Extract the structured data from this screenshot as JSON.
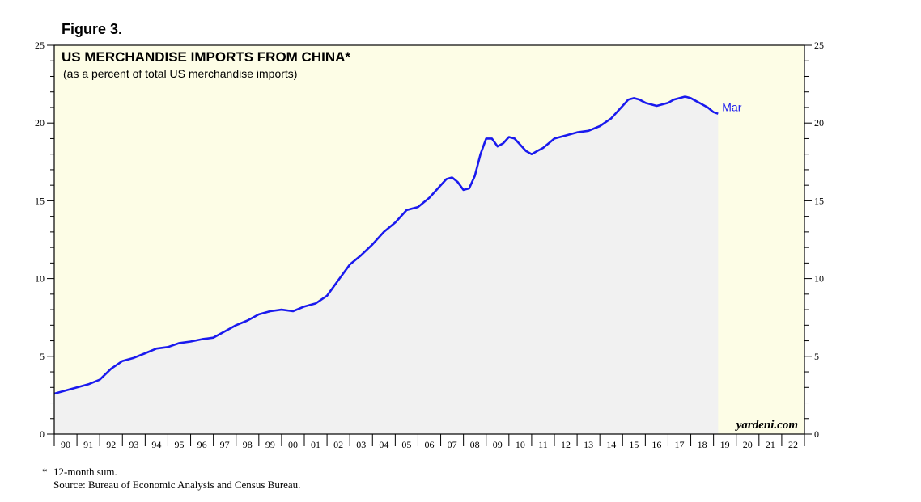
{
  "figure_label": "Figure 3.",
  "footnote": {
    "star": "*",
    "note": "12-month sum.",
    "source": "Source: Bureau of Economic Analysis and Census Bureau."
  },
  "colors": {
    "plot_bg": "#fdfde6",
    "line": "#1a1aee",
    "fill": "#f1f1f1"
  },
  "chart_data": {
    "type": "area",
    "title": "US MERCHANDISE IMPORTS FROM CHINA*",
    "subtitle": "(as a percent of total US merchandise imports)",
    "watermark": "yardeni.com",
    "end_label": "Mar",
    "ylim": [
      0,
      25
    ],
    "y_ticks": [
      "0",
      "5",
      "10",
      "15",
      "20",
      "25"
    ],
    "xlim": [
      1990,
      2023
    ],
    "x_tick_labels": [
      "90",
      "91",
      "92",
      "93",
      "94",
      "95",
      "96",
      "97",
      "98",
      "99",
      "00",
      "01",
      "02",
      "03",
      "04",
      "05",
      "06",
      "07",
      "08",
      "09",
      "10",
      "11",
      "12",
      "13",
      "14",
      "15",
      "16",
      "17",
      "18",
      "19",
      "20",
      "21",
      "22"
    ],
    "grid": false,
    "series": [
      {
        "name": "US merchandise imports from China (% of total)",
        "x": [
          1990.0,
          1990.5,
          1991.0,
          1991.5,
          1992.0,
          1992.5,
          1993.0,
          1993.5,
          1994.0,
          1994.5,
          1995.0,
          1995.5,
          1996.0,
          1996.5,
          1997.0,
          1997.5,
          1998.0,
          1998.5,
          1999.0,
          1999.5,
          2000.0,
          2000.5,
          2001.0,
          2001.5,
          2002.0,
          2002.5,
          2003.0,
          2003.5,
          2004.0,
          2004.5,
          2005.0,
          2005.5,
          2006.0,
          2006.5,
          2007.0,
          2007.25,
          2007.5,
          2007.75,
          2008.0,
          2008.25,
          2008.5,
          2008.75,
          2009.0,
          2009.25,
          2009.5,
          2009.75,
          2010.0,
          2010.25,
          2010.5,
          2010.75,
          2011.0,
          2011.25,
          2011.5,
          2011.75,
          2012.0,
          2012.5,
          2013.0,
          2013.5,
          2014.0,
          2014.5,
          2015.0,
          2015.25,
          2015.5,
          2015.75,
          2016.0,
          2016.25,
          2016.5,
          2016.75,
          2017.0,
          2017.25,
          2017.5,
          2017.75,
          2018.0,
          2018.25,
          2018.5,
          2018.75,
          2019.0,
          2019.2
        ],
        "values": [
          2.6,
          2.8,
          3.0,
          3.2,
          3.5,
          4.2,
          4.7,
          4.9,
          5.2,
          5.5,
          5.6,
          5.85,
          5.95,
          6.1,
          6.2,
          6.6,
          7.0,
          7.3,
          7.7,
          7.9,
          8.0,
          7.9,
          8.2,
          8.4,
          8.9,
          9.9,
          10.9,
          11.5,
          12.2,
          13.0,
          13.6,
          14.4,
          14.6,
          15.2,
          16.0,
          16.4,
          16.5,
          16.2,
          15.7,
          15.8,
          16.6,
          18.0,
          19.0,
          19.0,
          18.5,
          18.7,
          19.1,
          19.0,
          18.6,
          18.2,
          18.0,
          18.2,
          18.4,
          18.7,
          19.0,
          19.2,
          19.4,
          19.5,
          19.8,
          20.3,
          21.1,
          21.5,
          21.6,
          21.5,
          21.3,
          21.2,
          21.1,
          21.2,
          21.3,
          21.5,
          21.6,
          21.7,
          21.6,
          21.4,
          21.2,
          21.0,
          20.7,
          20.6
        ]
      }
    ]
  }
}
